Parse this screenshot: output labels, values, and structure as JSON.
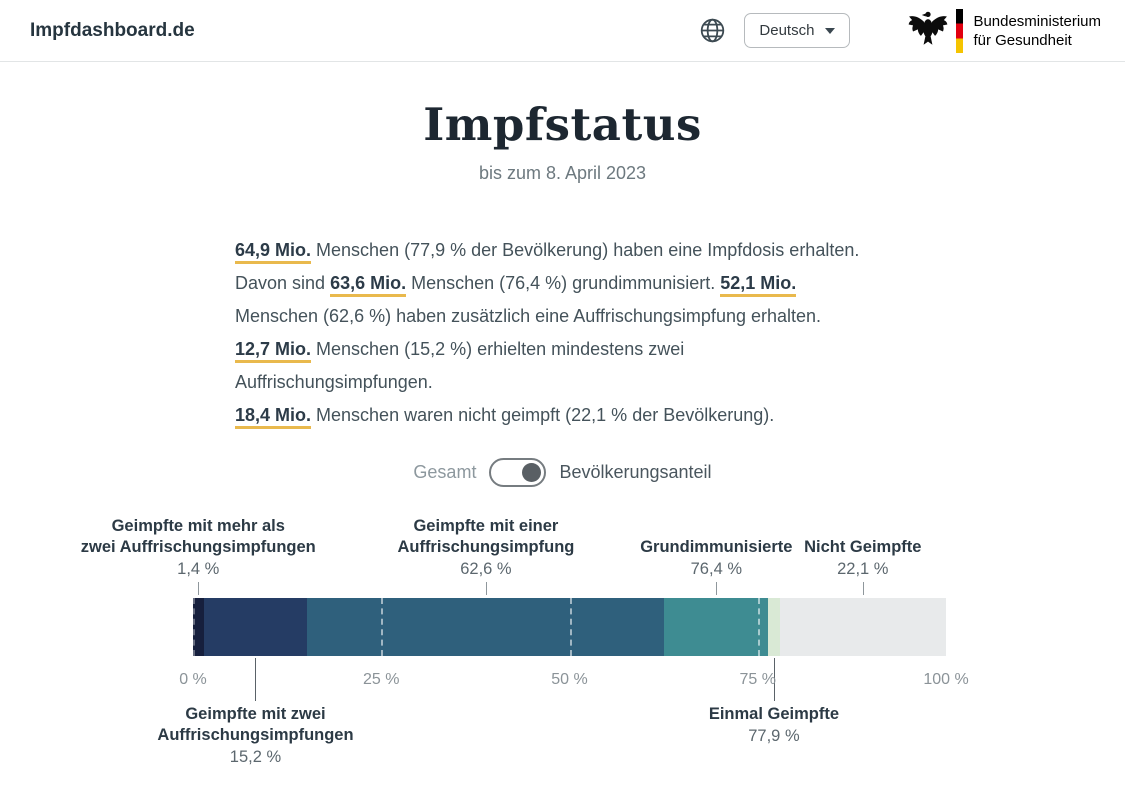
{
  "header": {
    "brand": "Impfdashboard.de",
    "language": {
      "selected": "Deutsch"
    },
    "ministry": {
      "line1": "Bundesministerium",
      "line2": "für Gesundheit"
    }
  },
  "title": {
    "heading": "Impfstatus",
    "subtitle": "bis zum 8. April 2023"
  },
  "summary": {
    "paragraphs": [
      [
        {
          "t": "64,9 Mio.",
          "hl": true
        },
        {
          "t": " Menschen (77,9 % der Bevölkerung) haben eine Impfdosis erhalten.",
          "hl": false
        },
        {
          "br": true
        },
        {
          "t": "Davon sind ",
          "hl": false
        },
        {
          "t": "63,6 Mio.",
          "hl": true
        },
        {
          "t": " Menschen (76,4 %) grundimmunisiert. ",
          "hl": false
        },
        {
          "t": "52,1 Mio.",
          "hl": true
        },
        {
          "br": true
        },
        {
          "t": "Menschen (62,6 %) haben zusätzlich eine Auffrischungsimpfung erhalten.",
          "hl": false
        }
      ],
      [
        {
          "t": "12,7 Mio.",
          "hl": true
        },
        {
          "t": " Menschen (15,2 %) erhielten mindestens zwei",
          "hl": false
        },
        {
          "br": true
        },
        {
          "t": "Auffrischungsimpfungen.",
          "hl": false
        }
      ],
      [
        {
          "t": "18,4 Mio.",
          "hl": true
        },
        {
          "t": " Menschen waren nicht geimpft (22,1 % der Bevölkerung).",
          "hl": false
        }
      ]
    ]
  },
  "toggle": {
    "left_label": "Gesamt",
    "right_label": "Bevölkerungsanteil",
    "state": "right"
  },
  "chart_data": {
    "type": "bar",
    "orientation": "horizontal_stacked",
    "title": "Impfstatus",
    "unit": "%",
    "x_axis": {
      "ticks": [
        0,
        25,
        50,
        75,
        100
      ],
      "tick_labels": [
        "0 %",
        "25 %",
        "50 %",
        "75 %",
        "100 %"
      ]
    },
    "grid": "dashed vertical lines at quarter marks over the bar",
    "segments": [
      {
        "name": "Geimpfte mit mehr als zwei Auffrischungsimpfungen",
        "label_lines": [
          "Geimpfte mit mehr als",
          "zwei Auffrischungsimpfungen"
        ],
        "value": 1.4,
        "value_label": "1,4 %",
        "from": 0,
        "to": 1.4,
        "color": "#161f3d",
        "annotation_side": "top"
      },
      {
        "name": "Geimpfte mit zwei Auffrischungsimpfungen",
        "label_lines": [
          "Geimpfte mit zwei",
          "Auffrischungsimpfungen"
        ],
        "value": 15.2,
        "value_label": "15,2 %",
        "from": 1.4,
        "to": 15.2,
        "color": "#253c64",
        "annotation_side": "bottom"
      },
      {
        "name": "Geimpfte mit einer Auffrischungsimpfung",
        "label_lines": [
          "Geimpfte mit einer",
          "Auffrischungsimpfung"
        ],
        "value": 62.6,
        "value_label": "62,6 %",
        "from": 15.2,
        "to": 62.6,
        "color": "#2f607c",
        "annotation_side": "top"
      },
      {
        "name": "Grundimmunisierte",
        "label_lines": [
          "Grundimmunisierte"
        ],
        "value": 76.4,
        "value_label": "76,4 %",
        "from": 62.6,
        "to": 76.4,
        "color": "#3e8c92",
        "annotation_side": "top"
      },
      {
        "name": "Einmal Geimpfte",
        "label_lines": [
          "Einmal Geimpfte"
        ],
        "value": 77.9,
        "value_label": "77,9 %",
        "from": 76.4,
        "to": 77.9,
        "color": "#d9e9d5",
        "annotation_side": "bottom"
      },
      {
        "name": "Nicht Geimpfte",
        "label_lines": [
          "Nicht Geimpfte"
        ],
        "value": 22.1,
        "value_label": "22,1 %",
        "from": 77.9,
        "to": 100,
        "color": "#e8eaeb",
        "annotation_side": "top"
      }
    ]
  }
}
